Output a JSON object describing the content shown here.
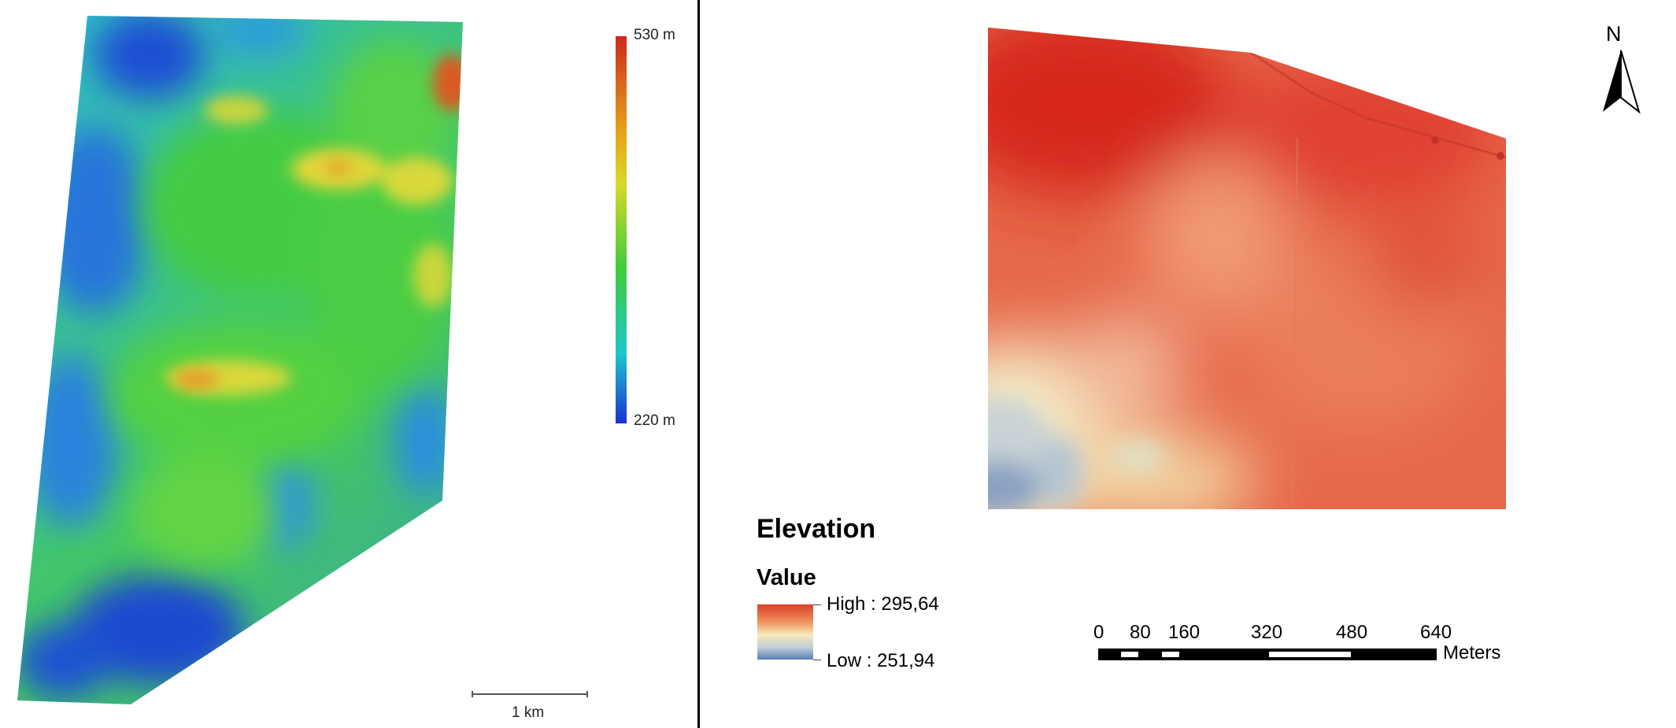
{
  "left_map": {
    "colorbar": {
      "max_label": "530 m",
      "min_label": "220 m",
      "colors": [
        "#cc2a1b",
        "#e6a31c",
        "#d8d829",
        "#3fcc3a",
        "#1ec6cc",
        "#1b31d0"
      ]
    },
    "scale_bar": {
      "label": "1 km"
    },
    "palette": {
      "low": "#1b3dcf",
      "mid_low": "#20b5e0",
      "mid": "#45cc46",
      "mid_high": "#dfd73a",
      "high": "#d6461d"
    }
  },
  "right_map": {
    "north_arrow": {
      "label": "N"
    },
    "legend": {
      "title": "Elevation",
      "subtitle": "Value",
      "high_label": "High : 295,64",
      "low_label": "Low : 251,94",
      "colors": [
        "#d8412b",
        "#ee8c58",
        "#f7e9b8",
        "#c2cfd9",
        "#5a7cb8"
      ]
    },
    "scale_bar": {
      "ticks": [
        "0",
        "80",
        "160",
        "320",
        "480",
        "640"
      ],
      "unit": "Meters"
    },
    "palette": {
      "high": "#d92f22",
      "mid": "#e86f4c",
      "low_mid": "#f5e9be",
      "low": "#7796c0"
    }
  }
}
